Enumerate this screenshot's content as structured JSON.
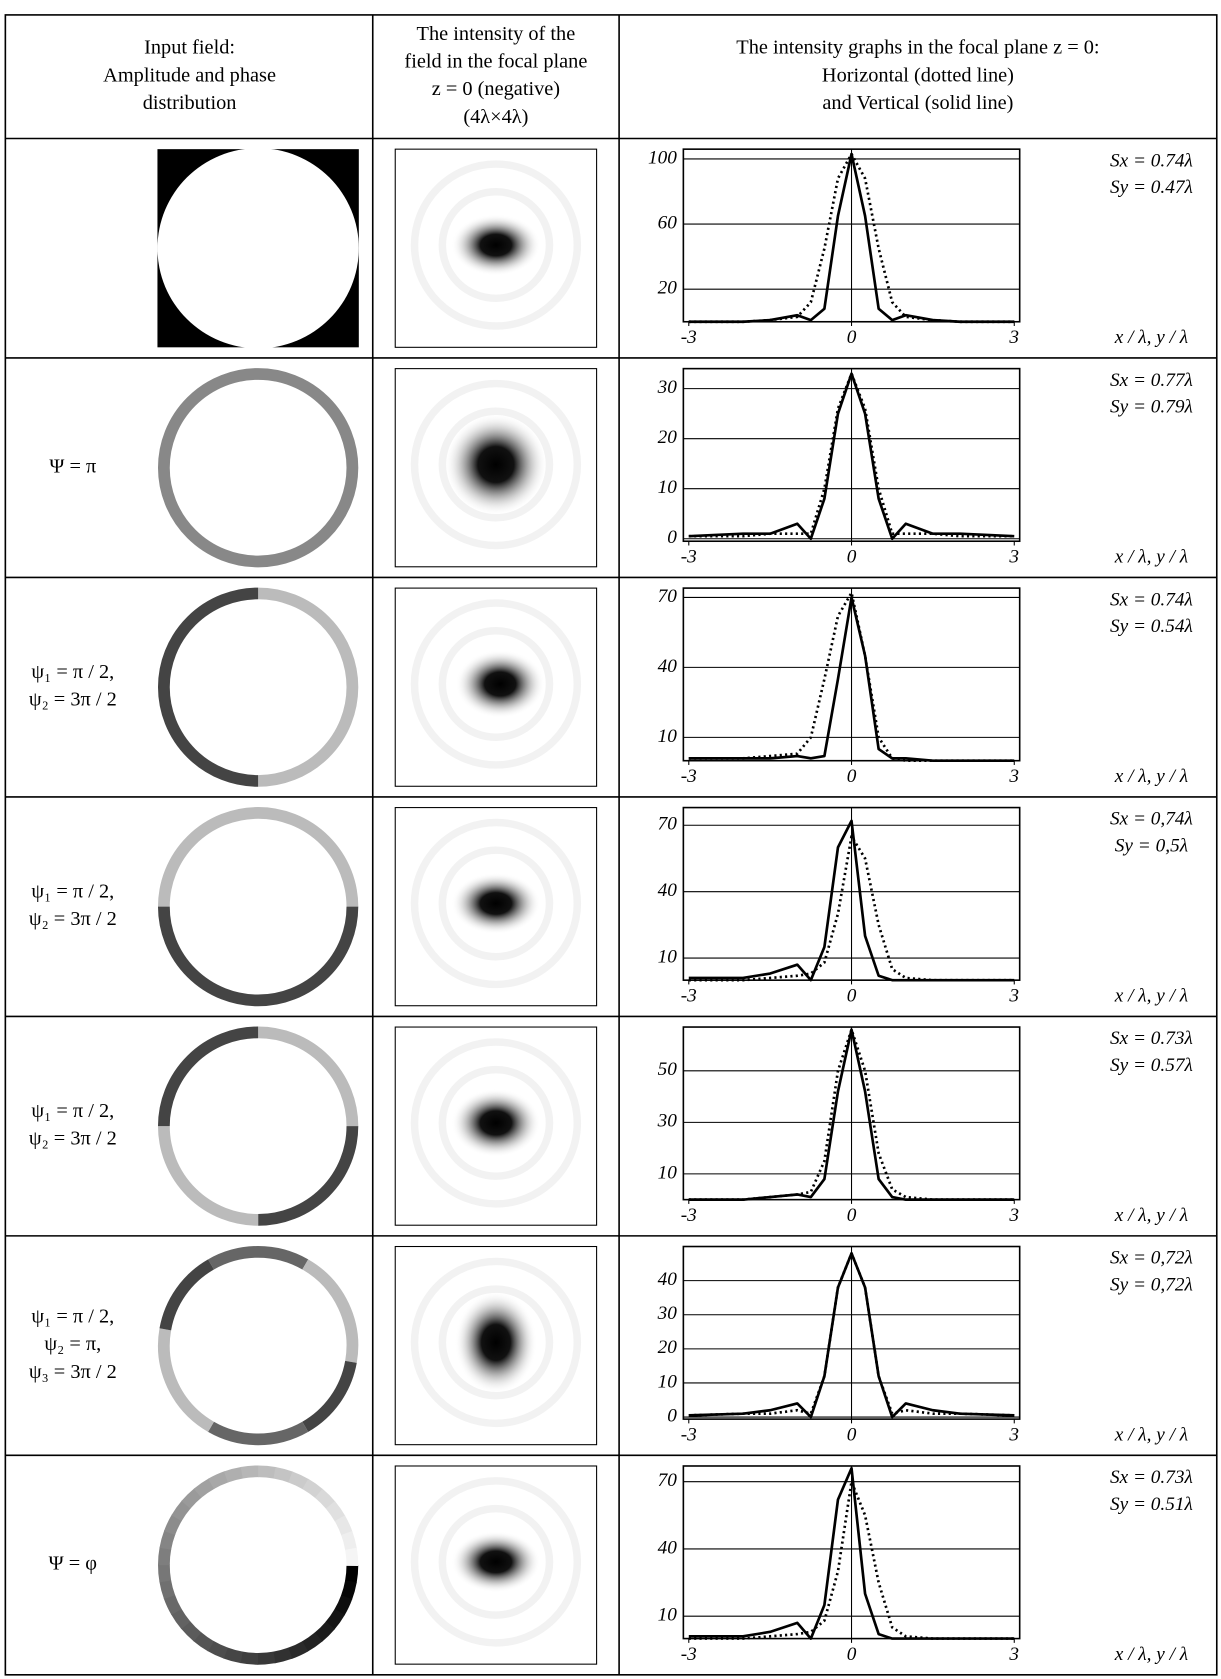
{
  "header": [
    [
      "Input field:",
      "Amplitude and phase",
      "distribution"
    ],
    [
      "The intensity of the",
      "field in the focal plane",
      "z = 0 (negative)",
      "(4λ×4λ)"
    ],
    [
      "The intensity graphs in the focal plane z = 0:",
      "Horizontal (dotted line)",
      "and Vertical (solid line)"
    ]
  ],
  "rows": [
    {
      "label": [],
      "sx": "Sx = 0.74λ",
      "sy": "Sy = 0.47λ",
      "axis_label": "x / λ, y / λ",
      "graph": {
        "xlim": [
          -3.1,
          3.1
        ],
        "ylim": [
          0,
          106
        ],
        "xticks": [
          -3,
          0,
          3
        ],
        "yticks": [
          20,
          60,
          100
        ],
        "x": [
          -3,
          -2,
          -1.5,
          -1,
          -0.75,
          -0.5,
          -0.25,
          0,
          0.25,
          0.5,
          0.75,
          1,
          1.5,
          2,
          3
        ],
        "solid": [
          0,
          0,
          1,
          4,
          1,
          8,
          65,
          103,
          65,
          8,
          1,
          4,
          1,
          0,
          0
        ],
        "dotted": [
          0,
          0,
          1,
          3,
          12,
          45,
          88,
          103,
          88,
          45,
          12,
          3,
          1,
          0,
          0
        ]
      }
    },
    {
      "label": [
        "Ψ = π"
      ],
      "sx": "Sx = 0.77λ",
      "sy": "Sy = 0.79λ",
      "axis_label": "x / λ, y / λ",
      "graph": {
        "xlim": [
          -3.1,
          3.1
        ],
        "ylim": [
          -0.5,
          34
        ],
        "xticks": [
          -3,
          0,
          3
        ],
        "yticks": [
          0,
          10,
          20,
          30
        ],
        "x": [
          -3,
          -2,
          -1.5,
          -1,
          -0.75,
          -0.5,
          -0.25,
          0,
          0.25,
          0.5,
          0.75,
          1,
          1.5,
          2,
          3
        ],
        "solid": [
          0.5,
          1,
          1,
          3,
          0,
          8,
          25,
          33,
          25,
          8,
          0,
          3,
          1,
          1,
          0.5
        ],
        "dotted": [
          0.5,
          0.5,
          1,
          1,
          1,
          10,
          26,
          33,
          26,
          10,
          1,
          1,
          1,
          0.5,
          0.5
        ]
      }
    },
    {
      "label": [
        "ψ₁ = π / 2,",
        "ψ₂ = 3π / 2"
      ],
      "sx": "Sx = 0.74λ",
      "sy": "Sy = 0.54λ",
      "axis_label": "x / λ, y / λ",
      "graph": {
        "xlim": [
          -3.1,
          3.1
        ],
        "ylim": [
          0,
          74
        ],
        "xticks": [
          -3,
          0,
          3
        ],
        "yticks": [
          10,
          40,
          70
        ],
        "x": [
          -3,
          -2,
          -1.5,
          -1,
          -0.75,
          -0.5,
          -0.25,
          0,
          0.25,
          0.5,
          0.75,
          1,
          1.5,
          2,
          3
        ],
        "solid": [
          1,
          1,
          1,
          2,
          1,
          2,
          35,
          70,
          45,
          5,
          1,
          1,
          0,
          0,
          0
        ],
        "dotted": [
          1,
          1,
          2,
          3,
          10,
          35,
          62,
          72,
          45,
          10,
          1,
          0,
          0,
          0,
          0
        ]
      }
    },
    {
      "label": [
        "ψ₁ = π / 2,",
        "ψ₂ = 3π / 2"
      ],
      "sx": "Sx = 0,74λ",
      "sy": "Sy = 0,5λ",
      "axis_label": "x / λ, y / λ",
      "graph": {
        "xlim": [
          -3.1,
          3.1
        ],
        "ylim": [
          0,
          78
        ],
        "xticks": [
          -3,
          0,
          3
        ],
        "yticks": [
          10,
          40,
          70
        ],
        "x": [
          -3,
          -2,
          -1.5,
          -1,
          -0.75,
          -0.5,
          -0.25,
          0,
          0.25,
          0.5,
          0.75,
          1,
          1.5,
          2,
          3
        ],
        "solid": [
          1,
          1,
          3,
          7,
          0,
          15,
          60,
          72,
          20,
          2,
          0,
          0,
          0,
          0,
          0
        ],
        "dotted": [
          0,
          0,
          1,
          2,
          3,
          8,
          30,
          65,
          55,
          25,
          5,
          1,
          0,
          0,
          0
        ]
      }
    },
    {
      "label": [
        "ψ₁ = π / 2,",
        "ψ₂ = 3π / 2"
      ],
      "sx": "Sx = 0.73λ",
      "sy": "Sy = 0.57λ",
      "axis_label": "x / λ, y / λ",
      "graph": {
        "xlim": [
          -3.1,
          3.1
        ],
        "ylim": [
          0,
          67
        ],
        "xticks": [
          -3,
          0,
          3
        ],
        "yticks": [
          10,
          30,
          50
        ],
        "x": [
          -3,
          -2,
          -1.5,
          -1,
          -0.75,
          -0.5,
          -0.25,
          0,
          0.25,
          0.5,
          0.75,
          1,
          1.5,
          2,
          3
        ],
        "solid": [
          0,
          0,
          1,
          2,
          1,
          8,
          42,
          66,
          42,
          8,
          1,
          0,
          0,
          0,
          0
        ],
        "dotted": [
          0,
          0,
          1,
          2,
          3,
          15,
          50,
          66,
          50,
          18,
          4,
          1,
          0,
          0,
          0
        ]
      }
    },
    {
      "label": [
        "ψ₁ = π / 2,",
        "ψ₂ = π,",
        "ψ₃ = 3π / 2"
      ],
      "sx": "Sx = 0,72λ",
      "sy": "Sy = 0,72λ",
      "axis_label": "x / λ, y / λ",
      "graph": {
        "xlim": [
          -3.1,
          3.1
        ],
        "ylim": [
          -0.6,
          50
        ],
        "xticks": [
          -3,
          0,
          3
        ],
        "yticks": [
          0,
          10,
          20,
          30,
          40
        ],
        "x": [
          -3,
          -2,
          -1.5,
          -1,
          -0.75,
          -0.5,
          -0.25,
          0,
          0.25,
          0.5,
          0.75,
          1,
          1.5,
          2,
          3
        ],
        "solid": [
          0.5,
          1,
          2,
          4,
          0,
          12,
          38,
          48,
          38,
          12,
          0,
          4,
          2,
          1,
          0.5
        ],
        "dotted": [
          0.5,
          1,
          1,
          2,
          1,
          12,
          38,
          48,
          38,
          12,
          1,
          2,
          1,
          1,
          0.5
        ]
      }
    },
    {
      "label": [
        "Ψ = φ"
      ],
      "sx": "Sx = 0.73λ",
      "sy": "Sy = 0.51λ",
      "axis_label": "x / λ, y / λ",
      "graph": {
        "xlim": [
          -3.1,
          3.1
        ],
        "ylim": [
          0,
          77
        ],
        "xticks": [
          -3,
          0,
          3
        ],
        "yticks": [
          10,
          40,
          70
        ],
        "x": [
          -3,
          -2,
          -1.5,
          -1,
          -0.75,
          -0.5,
          -0.25,
          0,
          0.25,
          0.5,
          0.75,
          1,
          1.5,
          2,
          3
        ],
        "solid": [
          1,
          1,
          3,
          7,
          0,
          15,
          62,
          76,
          20,
          2,
          0,
          0,
          0,
          0,
          0
        ],
        "dotted": [
          0,
          0,
          1,
          2,
          3,
          8,
          30,
          70,
          55,
          25,
          5,
          1,
          0,
          0,
          0
        ]
      }
    }
  ]
}
